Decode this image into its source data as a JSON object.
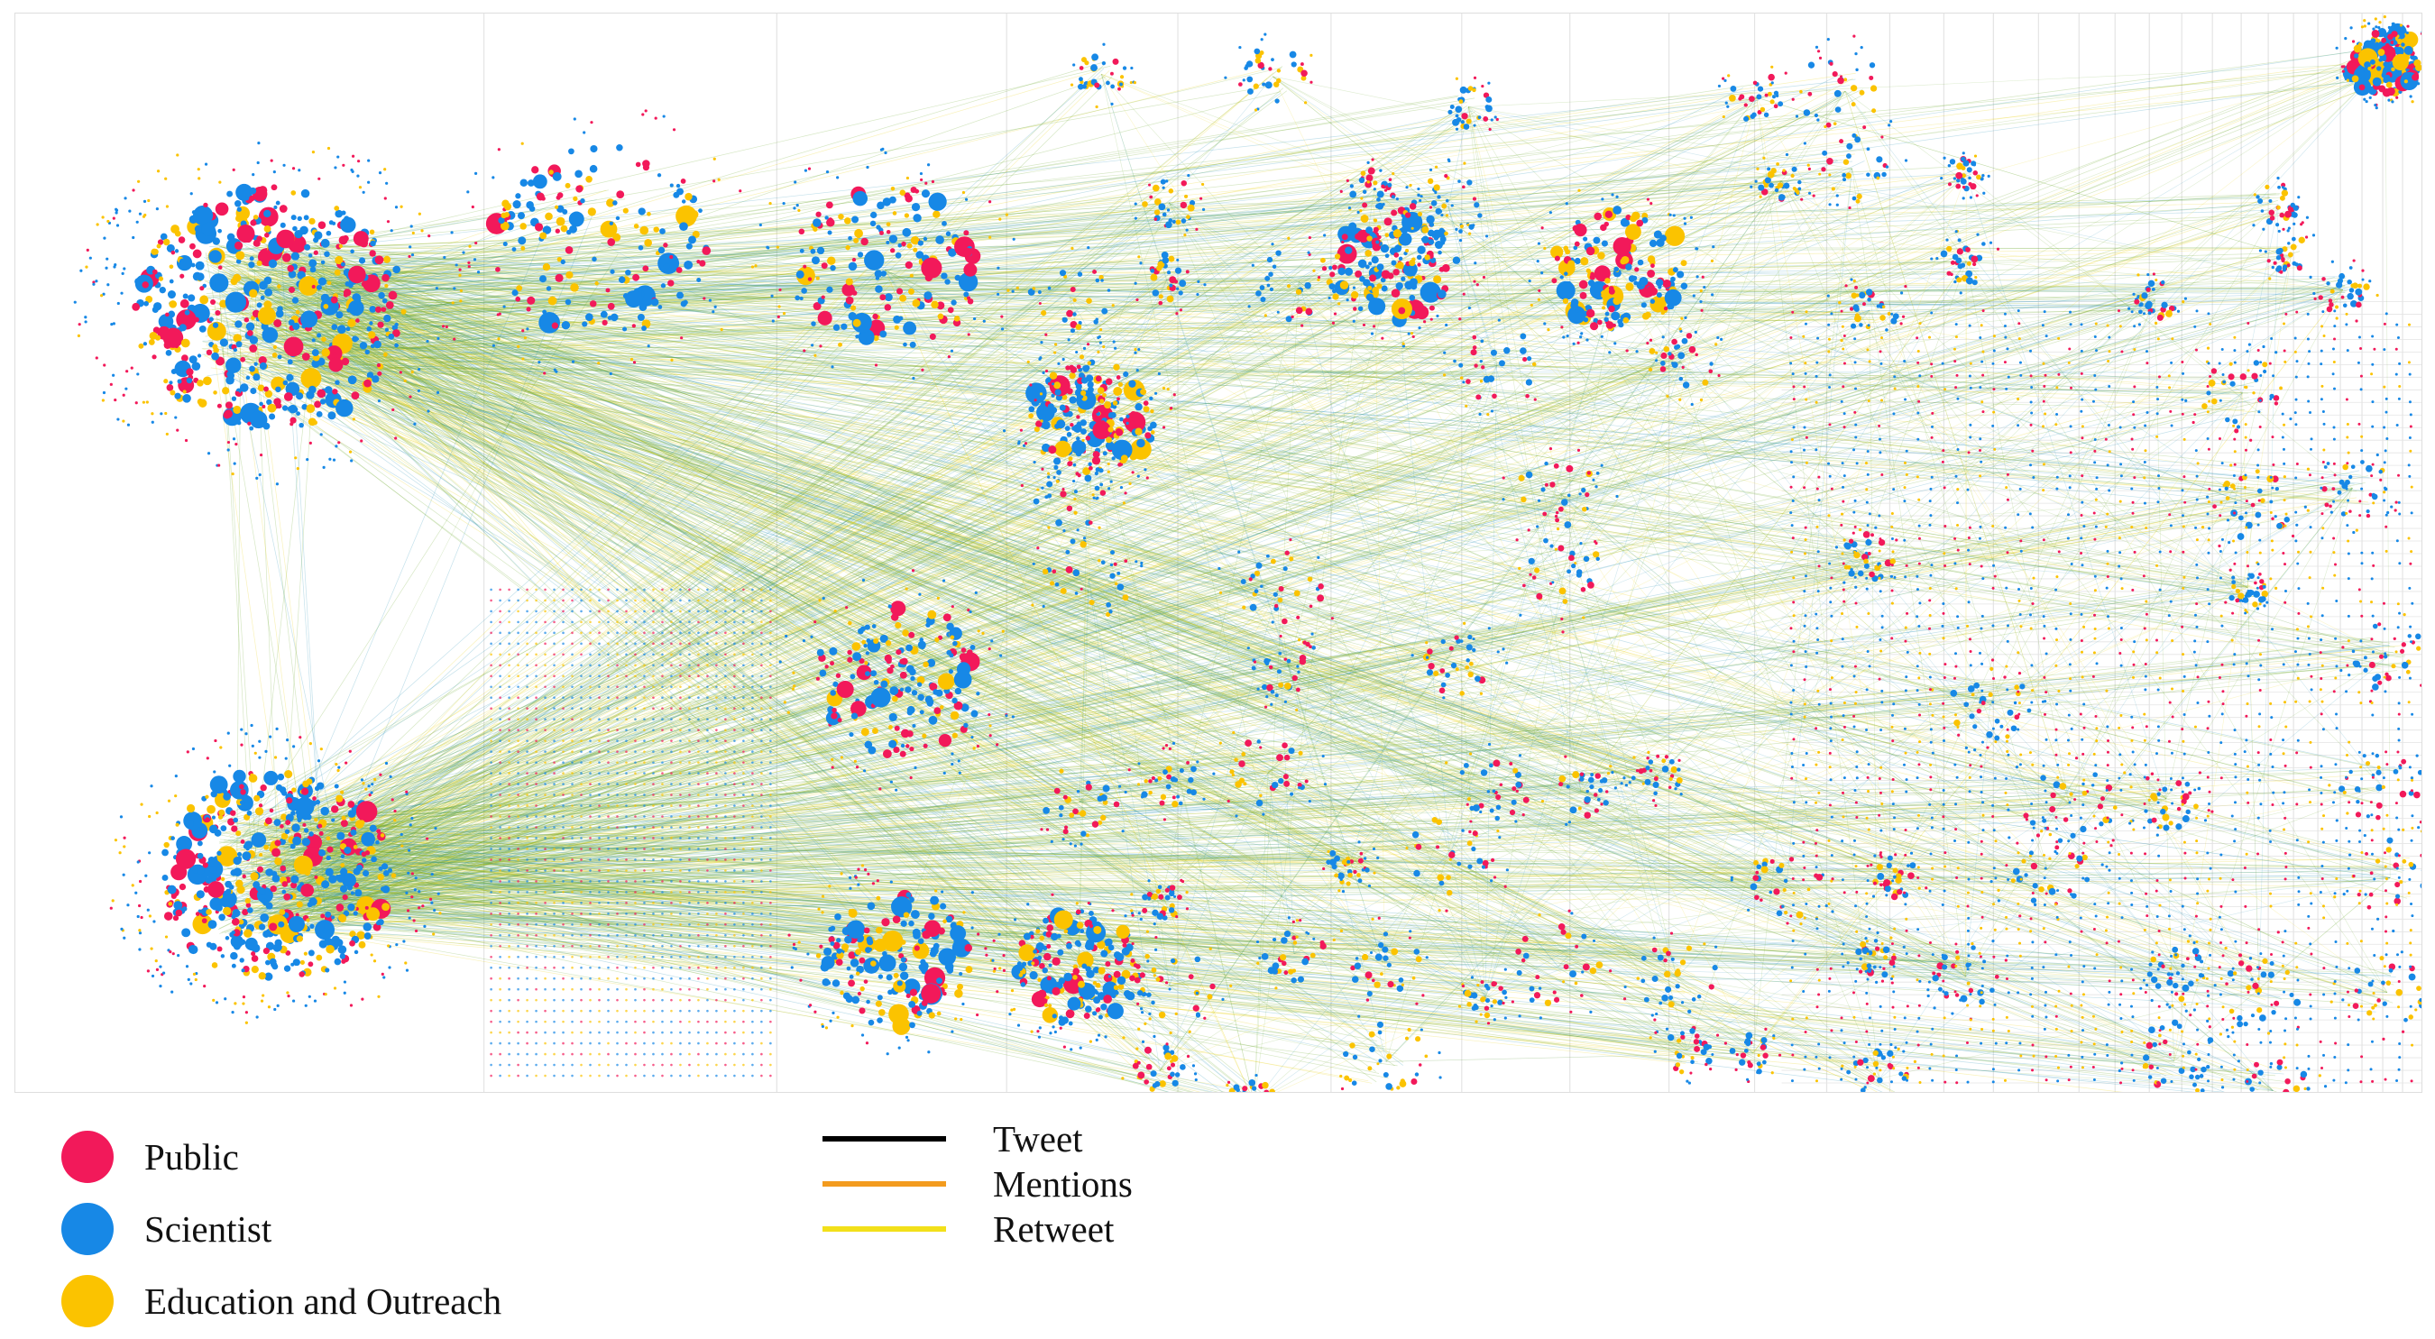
{
  "colors": {
    "public": "#f2195a",
    "scientist": "#1788e6",
    "education": "#fbc300",
    "edge_blue": "#2b93b8",
    "edge_green": "#6aa82b",
    "edge_yellow": "#e8d20b",
    "grid_line": "#e4e4e4"
  },
  "legend": {
    "user_types": [
      {
        "label": "Public",
        "color": "#f2195a"
      },
      {
        "label": "Scientist",
        "color": "#1788e6"
      },
      {
        "label": "Education and Outreach",
        "color": "#fbc300"
      }
    ],
    "interaction_types": [
      {
        "label": "Tweet",
        "color": "#000000"
      },
      {
        "label": "Mentions",
        "color": "#f39b1e"
      },
      {
        "label": "Retweet",
        "color": "#f2e01a"
      }
    ]
  }
}
